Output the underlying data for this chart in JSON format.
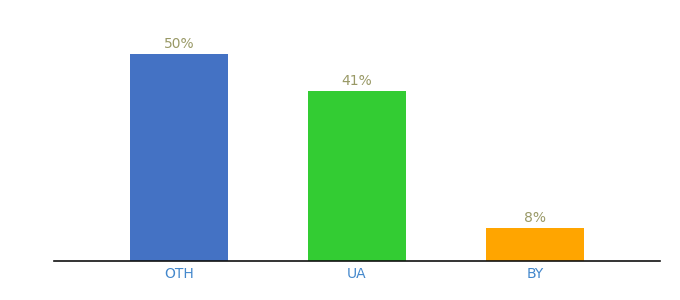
{
  "categories": [
    "OTH",
    "UA",
    "BY"
  ],
  "values": [
    50,
    41,
    8
  ],
  "bar_colors": [
    "#4472C4",
    "#33CC33",
    "#FFA500"
  ],
  "labels": [
    "50%",
    "41%",
    "8%"
  ],
  "label_color": "#999966",
  "ylim": [
    0,
    58
  ],
  "background_color": "#ffffff",
  "bar_width": 0.55,
  "label_fontsize": 10,
  "tick_fontsize": 10,
  "x_positions": [
    1,
    2,
    3
  ]
}
